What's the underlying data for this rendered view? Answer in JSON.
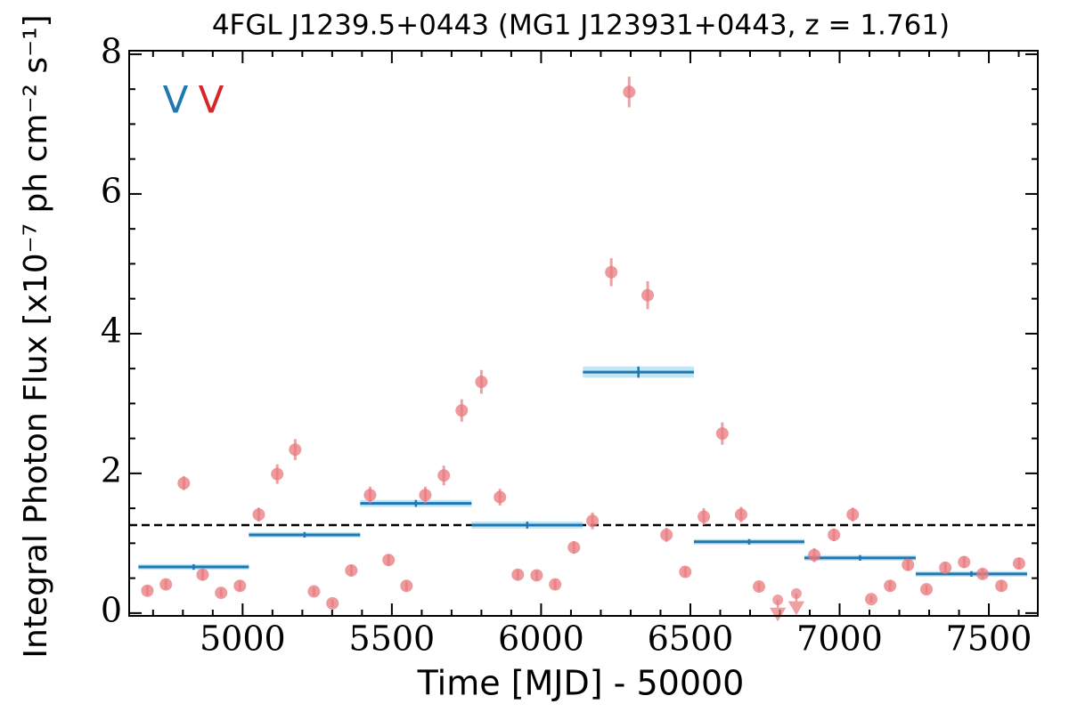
{
  "chart_data": {
    "type": "scatter",
    "title": "4FGL J1239.5+0443 (MG1 J123931+0443, z = 1.761)",
    "x_label": "Time [MJD] - 50000",
    "y_label": "Integral Photon Flux [x10⁻⁷ ph cm⁻² s⁻¹]",
    "xlim": [
      4620,
      7664
    ],
    "ylim": [
      -0.04,
      8.05
    ],
    "xticks": [
      5000,
      5500,
      6000,
      6500,
      7000,
      7500
    ],
    "yticks": [
      0,
      2,
      4,
      6,
      8
    ],
    "xminorticks": [
      4700,
      4800,
      4900,
      5100,
      5200,
      5300,
      5400,
      5600,
      5700,
      5800,
      5900,
      6100,
      6200,
      6300,
      6400,
      6600,
      6700,
      6800,
      6900,
      7100,
      7200,
      7300,
      7400,
      7600
    ],
    "yminorticks": [
      0.5,
      1,
      1.5,
      2.5,
      3,
      3.5,
      4.5,
      5,
      5.5,
      6.5,
      7,
      7.5
    ],
    "markers": [
      {
        "label": "V",
        "color": "#1f77b4"
      },
      {
        "label": "V",
        "color": "#d62728"
      }
    ],
    "mean": 1.26,
    "points": {
      "color": "#e8787c",
      "x": [
        4681,
        4743,
        4803,
        4866,
        4928,
        4991,
        5054,
        5116,
        5176,
        5239,
        5301,
        5364,
        5427,
        5489,
        5549,
        5612,
        5674,
        5734,
        5800,
        5862,
        5922,
        5985,
        6047,
        6110,
        6172,
        6235,
        6295,
        6357,
        6420,
        6483,
        6545,
        6607,
        6670,
        6730,
        6915,
        6981,
        7044,
        7106,
        7169,
        7229,
        7291,
        7354,
        7417,
        7479,
        7542,
        7601
      ],
      "values": [
        0.32,
        0.41,
        1.86,
        0.55,
        0.29,
        0.39,
        1.41,
        1.99,
        2.34,
        0.31,
        0.14,
        0.61,
        1.69,
        0.76,
        0.39,
        1.69,
        1.97,
        2.9,
        3.31,
        1.66,
        0.55,
        0.54,
        0.41,
        0.94,
        1.32,
        4.88,
        7.46,
        4.55,
        1.12,
        0.59,
        1.38,
        2.57,
        1.41,
        0.38,
        0.83,
        1.12,
        1.41,
        0.2,
        0.39,
        0.69,
        0.34,
        0.65,
        0.73,
        0.56,
        0.39,
        0.71
      ],
      "errors": [
        0.07,
        0.07,
        0.1,
        0.08,
        0.06,
        0.07,
        0.1,
        0.14,
        0.15,
        0.06,
        0.05,
        0.08,
        0.12,
        0.08,
        0.07,
        0.12,
        0.14,
        0.16,
        0.17,
        0.12,
        0.07,
        0.07,
        0.07,
        0.09,
        0.12,
        0.2,
        0.22,
        0.2,
        0.1,
        0.07,
        0.12,
        0.16,
        0.11,
        0.06,
        0.1,
        0.09,
        0.1,
        0.05,
        0.07,
        0.08,
        0.06,
        0.08,
        0.08,
        0.07,
        0.07,
        0.08
      ]
    },
    "upper_limits": {
      "color": "#e8787c",
      "x": [
        6793,
        6855
      ],
      "values": [
        0.19,
        0.28
      ]
    },
    "binned": {
      "color": "#1f77b4",
      "band_color": "#a6dcef",
      "edges": [
        4651,
        5021,
        5394,
        5767,
        6140,
        6512,
        6882,
        7255,
        7628
      ],
      "values": [
        0.66,
        1.12,
        1.57,
        1.26,
        3.45,
        1.02,
        0.79,
        0.56
      ],
      "errors": [
        0.04,
        0.04,
        0.05,
        0.05,
        0.08,
        0.04,
        0.04,
        0.04
      ]
    }
  }
}
